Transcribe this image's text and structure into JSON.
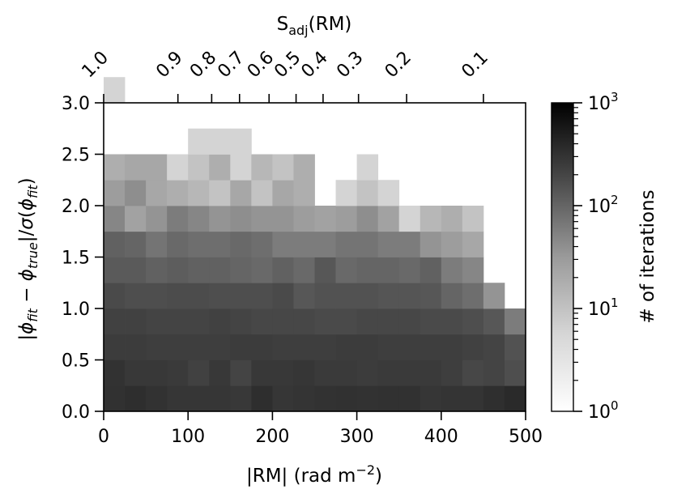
{
  "chart_data": {
    "type": "heatmap",
    "title": "",
    "xlabel": "|RM| (rad m$^{-2}$)",
    "ylabel": "|φ_fit − φ_true|/σ(φ_fit)",
    "top_xlabel": "S_adj(RM)",
    "colorbar_label": "# of iterations",
    "x_ticks": [
      "0",
      "100",
      "200",
      "300",
      "400",
      "500"
    ],
    "y_ticks": [
      "0.0",
      "0.5",
      "1.0",
      "1.5",
      "2.0",
      "2.5",
      "3.0"
    ],
    "top_ticks": [
      {
        "label": "1.0",
        "rm": 0
      },
      {
        "label": "0.9",
        "rm": 88
      },
      {
        "label": "0.8",
        "rm": 128
      },
      {
        "label": "0.7",
        "rm": 161
      },
      {
        "label": "0.6",
        "rm": 196
      },
      {
        "label": "0.5",
        "rm": 228
      },
      {
        "label": "0.4",
        "rm": 260
      },
      {
        "label": "0.3",
        "rm": 302
      },
      {
        "label": "0.2",
        "rm": 359
      },
      {
        "label": "0.1",
        "rm": 450
      }
    ],
    "colorbar_ticks": [
      {
        "base": "10",
        "exp": "0",
        "value": 1
      },
      {
        "base": "10",
        "exp": "1",
        "value": 10
      },
      {
        "base": "10",
        "exp": "2",
        "value": 100
      },
      {
        "base": "10",
        "exp": "3",
        "value": 1000
      }
    ],
    "xlim": [
      0,
      500
    ],
    "ylim": [
      0,
      3
    ],
    "color_scale": "log",
    "color_range": [
      1,
      1000
    ],
    "colormap": "Greys",
    "x_bin_width": 25,
    "y_bin_width": 0.25,
    "counts": [
      [
        200,
        220,
        190,
        170,
        170,
        170,
        160,
        220,
        170,
        180,
        190,
        200,
        190,
        200,
        200,
        170,
        180,
        180,
        210,
        250,
        250
      ],
      [
        190,
        160,
        160,
        150,
        120,
        160,
        110,
        160,
        160,
        170,
        150,
        150,
        140,
        150,
        150,
        150,
        130,
        100,
        110,
        80,
        60
      ],
      [
        140,
        140,
        130,
        130,
        130,
        130,
        140,
        140,
        130,
        130,
        130,
        140,
        140,
        130,
        130,
        130,
        130,
        120,
        110,
        70,
        35
      ],
      [
        120,
        120,
        110,
        110,
        110,
        120,
        110,
        100,
        100,
        100,
        90,
        90,
        100,
        100,
        100,
        90,
        90,
        80,
        60,
        20,
        4
      ],
      [
        90,
        80,
        80,
        85,
        85,
        80,
        80,
        80,
        90,
        60,
        70,
        70,
        70,
        65,
        65,
        60,
        40,
        30,
        10,
        0,
        0
      ],
      [
        55,
        55,
        45,
        50,
        45,
        45,
        40,
        35,
        45,
        35,
        60,
        35,
        40,
        40,
        35,
        45,
        20,
        15,
        0,
        0,
        0
      ],
      [
        45,
        40,
        25,
        35,
        30,
        30,
        35,
        30,
        20,
        20,
        20,
        25,
        25,
        20,
        20,
        10,
        8,
        6,
        0,
        0,
        0
      ],
      [
        15,
        7,
        10,
        20,
        15,
        10,
        12,
        10,
        10,
        8,
        7,
        8,
        12,
        7,
        2,
        4,
        5,
        3,
        0,
        0,
        0
      ],
      [
        8,
        12,
        6,
        5,
        4,
        3,
        6,
        3,
        6,
        5,
        0,
        2,
        3,
        2,
        0,
        0,
        0,
        0,
        0,
        0,
        0
      ],
      [
        5,
        6,
        6,
        2,
        3,
        5,
        2,
        4,
        3,
        5,
        0,
        0,
        2,
        0,
        0,
        0,
        0,
        0,
        0,
        0,
        0
      ],
      [
        0,
        0,
        0,
        0,
        2,
        2,
        2,
        0,
        0,
        0,
        0,
        0,
        0,
        0,
        0,
        0,
        0,
        0,
        0,
        0,
        0
      ],
      [
        0,
        0,
        0,
        0,
        0,
        0,
        0,
        0,
        0,
        0,
        0,
        0,
        0,
        0,
        0,
        0,
        0,
        0,
        0,
        0,
        0
      ],
      [
        2,
        0,
        0,
        0,
        0,
        0,
        0,
        0,
        0,
        0,
        0,
        0,
        0,
        0,
        0,
        0,
        0,
        0,
        0,
        0,
        0
      ]
    ]
  }
}
